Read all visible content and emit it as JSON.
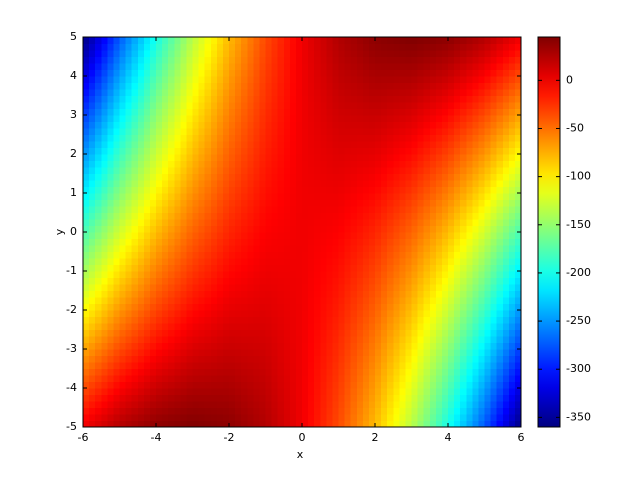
{
  "chart_data": {
    "type": "contourf",
    "xlabel": "x",
    "ylabel": "y",
    "colormap": "jet",
    "x": [
      -6,
      -5,
      -4,
      -3,
      -2,
      -1,
      0,
      1,
      2,
      3,
      4,
      5,
      6
    ],
    "y": [
      -5,
      -4,
      -3,
      -2,
      -1,
      0,
      1,
      2,
      3,
      4,
      5
    ],
    "z": [
      [
        0,
        25,
        40,
        45,
        40,
        25,
        0,
        -35,
        -80,
        -135,
        -200,
        -275,
        -360
      ],
      [
        -36,
        -5,
        16,
        27,
        28,
        19,
        0,
        -29,
        -68,
        -117,
        -176,
        -245,
        -324
      ],
      [
        -72,
        -35,
        -8,
        9,
        16,
        13,
        0,
        -23,
        -56,
        -99,
        -152,
        -215,
        -288
      ],
      [
        -108,
        -65,
        -32,
        -9,
        4,
        7,
        0,
        -17,
        -44,
        -81,
        -128,
        -185,
        -252
      ],
      [
        -144,
        -95,
        -56,
        -27,
        -8,
        1,
        0,
        -11,
        -32,
        -63,
        -104,
        -155,
        -216
      ],
      [
        -180,
        -125,
        -80,
        -45,
        -20,
        -5,
        0,
        -5,
        -20,
        -45,
        -80,
        -125,
        -180
      ],
      [
        -216,
        -155,
        -104,
        -63,
        -32,
        -11,
        0,
        1,
        -8,
        -27,
        -56,
        -95,
        -144
      ],
      [
        -252,
        -185,
        -128,
        -81,
        -44,
        -17,
        0,
        7,
        4,
        -9,
        -32,
        -65,
        -108
      ],
      [
        -288,
        -215,
        -152,
        -99,
        -56,
        -23,
        0,
        13,
        16,
        9,
        -8,
        -35,
        -72
      ],
      [
        -324,
        -245,
        -176,
        -117,
        -68,
        -29,
        0,
        19,
        28,
        27,
        16,
        -5,
        -36
      ],
      [
        -360,
        -275,
        -200,
        -135,
        -80,
        -35,
        0,
        25,
        40,
        45,
        40,
        25,
        0
      ]
    ],
    "xlim": [
      -6,
      6
    ],
    "xticks": [
      -6,
      -4,
      -2,
      0,
      2,
      4,
      6
    ],
    "ylim": [
      -5,
      5
    ],
    "yticks": [
      -5,
      -4,
      -3,
      -2,
      -1,
      0,
      1,
      2,
      3,
      4,
      5
    ],
    "clim": [
      -360,
      45
    ],
    "cticks": [
      -350,
      -300,
      -250,
      -200,
      -150,
      -100,
      -50,
      0
    ]
  }
}
